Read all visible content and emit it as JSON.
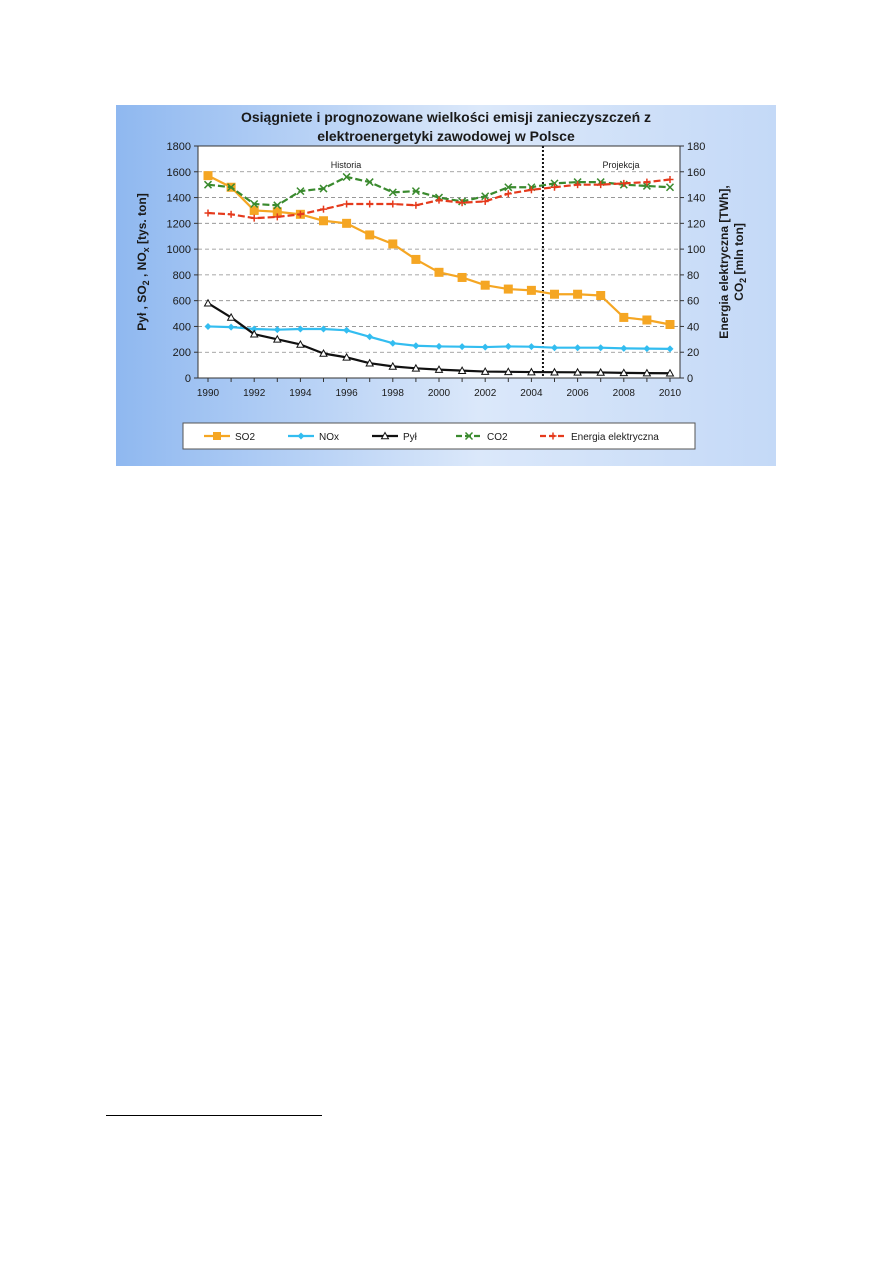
{
  "chart_data": {
    "type": "line",
    "title_lines": [
      "Osiągniete i prognozowane wielkości emisji zanieczyszczeń z",
      "elektroenergetyki zawodowej w Polsce"
    ],
    "ylabel_left": {
      "prefix": "Pył , SO",
      "sub1": "2",
      "mid1": " ,  NO",
      "sub2": "x",
      "suffix": "  [tys. ton]"
    },
    "ylabel_right": {
      "line1": "Energia elektryczna [TWh],",
      "line2_prefix": "CO",
      "line2_sub": "2",
      "line2_suffix": " [mln ton]"
    },
    "x": [
      1990,
      1991,
      1992,
      1993,
      1994,
      1995,
      1996,
      1997,
      1998,
      1999,
      2000,
      2001,
      2002,
      2003,
      2004,
      2005,
      2006,
      2007,
      2008,
      2009,
      2010
    ],
    "x_tick_labels": [
      "1990",
      "1992",
      "1994",
      "1996",
      "1998",
      "2000",
      "2002",
      "2004",
      "2006",
      "2008",
      "2010"
    ],
    "y_left_ticks": [
      "0",
      "200",
      "400",
      "600",
      "800",
      "1000",
      "1200",
      "1400",
      "1600",
      "1800"
    ],
    "y_right_ticks": [
      "0",
      "20",
      "40",
      "60",
      "80",
      "100",
      "120",
      "140",
      "160",
      "180"
    ],
    "ylim_left": [
      0,
      1800
    ],
    "ylim_right": [
      0,
      180
    ],
    "divider_x": 2004.5,
    "region_labels": {
      "history": "Historia",
      "projection": "Projekcja"
    },
    "grid": true,
    "legend_position": "bottom",
    "series": [
      {
        "name": "SO2",
        "axis": "left",
        "color": "#f5a623",
        "marker": "square",
        "values": [
          1570,
          1480,
          1300,
          1290,
          1270,
          1220,
          1200,
          1110,
          1040,
          920,
          820,
          780,
          720,
          690,
          680,
          650,
          650,
          640,
          470,
          450,
          415
        ]
      },
      {
        "name": "NOx",
        "axis": "left",
        "color": "#33bdf0",
        "marker": "diamond",
        "values": [
          400,
          395,
          380,
          375,
          380,
          380,
          370,
          320,
          270,
          250,
          245,
          243,
          240,
          245,
          243,
          235,
          235,
          235,
          230,
          228,
          226
        ]
      },
      {
        "name": "Pył",
        "axis": "left",
        "color": "#111111",
        "marker": "triangle",
        "values": [
          580,
          470,
          340,
          300,
          260,
          190,
          160,
          115,
          90,
          75,
          65,
          57,
          50,
          48,
          46,
          45,
          44,
          43,
          40,
          38,
          37
        ]
      },
      {
        "name": "CO2",
        "axis": "right",
        "color": "#3a8a2e",
        "marker": "x",
        "values": [
          150,
          148,
          135,
          134,
          145,
          147,
          156,
          152,
          144,
          145,
          140,
          137,
          141,
          148,
          148,
          151,
          152,
          152,
          150,
          149,
          148
        ]
      },
      {
        "name": "Energia elektryczna",
        "axis": "right",
        "color": "#e53a1c",
        "marker": "plus",
        "values": [
          128,
          127,
          124,
          125,
          127,
          131,
          135,
          135,
          135,
          134,
          138,
          136,
          137,
          143,
          146,
          148,
          150,
          150,
          151,
          152,
          154
        ]
      }
    ]
  }
}
